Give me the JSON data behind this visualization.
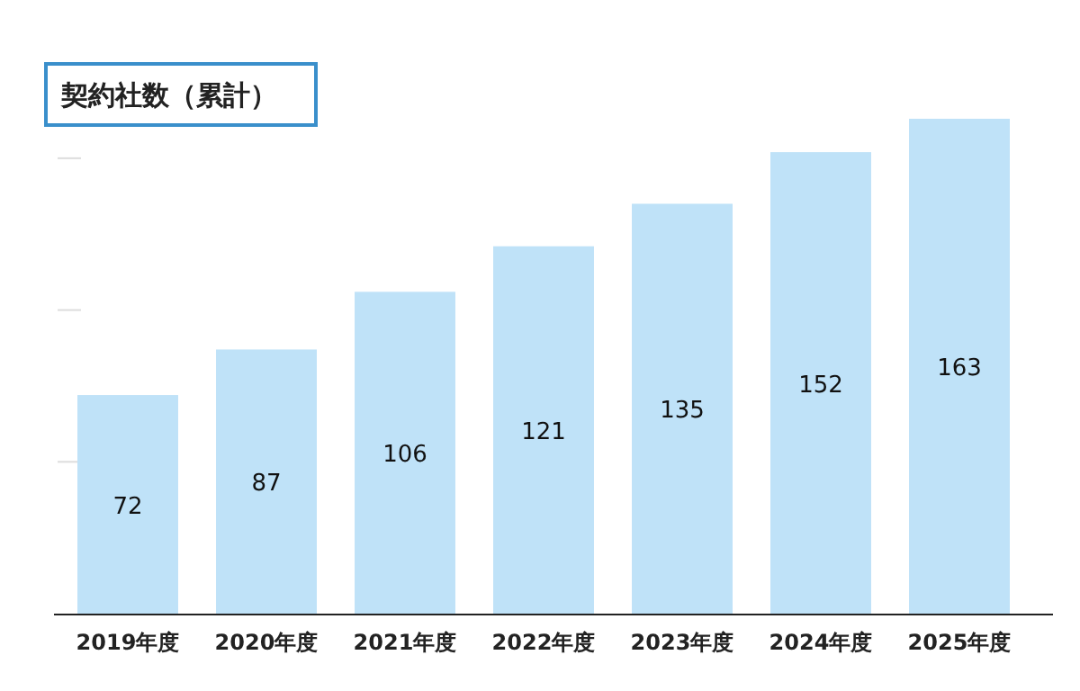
{
  "chart_data": {
    "type": "bar",
    "title": "契約社数（累計）",
    "categories": [
      "2019年度",
      "2020年度",
      "2021年度",
      "2022年度",
      "2023年度",
      "2024年度",
      "2025年度"
    ],
    "values": [
      72,
      87,
      106,
      121,
      135,
      152,
      163
    ],
    "color": "#bfe2f8",
    "yticks": [
      {
        "value": 50,
        "label": null
      },
      {
        "value": 100,
        "label": null
      },
      {
        "value": 150,
        "label": null
      }
    ],
    "tick_labels": "x",
    "data_labels": true
  }
}
